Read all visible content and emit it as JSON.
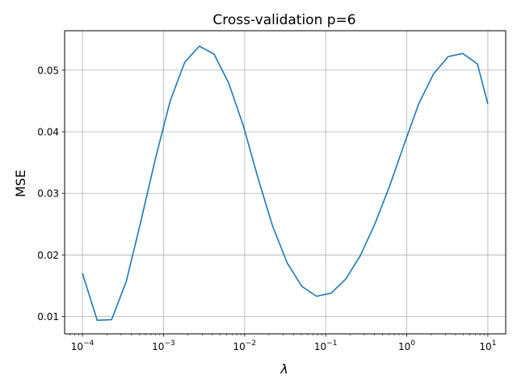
{
  "chart_data": {
    "type": "line",
    "title": "Cross-validation p=6",
    "xlabel": "λ",
    "ylabel": "MSE",
    "xscale": "log",
    "xlim": [
      6e-05,
      1.6e-05
    ],
    "xlim_exp": [
      -4.22,
      1.22
    ],
    "ylim": [
      0.0072,
      0.0564
    ],
    "grid": true,
    "line_color": "#1f77b4",
    "x_ticks": [
      {
        "exp": -4,
        "base": "10",
        "sup": "−4"
      },
      {
        "exp": -3,
        "base": "10",
        "sup": "−3"
      },
      {
        "exp": -2,
        "base": "10",
        "sup": "−2"
      },
      {
        "exp": -1,
        "base": "10",
        "sup": "−1"
      },
      {
        "exp": 0,
        "base": "10",
        "sup": "0"
      },
      {
        "exp": 1,
        "base": "10",
        "sup": "1"
      }
    ],
    "y_ticks": [
      {
        "value": 0.01,
        "label": "0.01"
      },
      {
        "value": 0.02,
        "label": "0.02"
      },
      {
        "value": 0.03,
        "label": "0.03"
      },
      {
        "value": 0.04,
        "label": "0.04"
      },
      {
        "value": 0.05,
        "label": "0.05"
      }
    ],
    "series": [
      {
        "x": [
          0.0001,
          0.000152,
          0.000229,
          0.000347,
          0.000526,
          0.000796,
          0.001207,
          0.001828,
          0.002771,
          0.004198,
          0.006361,
          0.009639,
          0.01461,
          0.02212,
          0.03352,
          0.0508,
          0.07697,
          0.1166,
          0.1767,
          0.2678,
          0.4057,
          0.6148,
          0.9316,
          1.4116,
          2.139,
          3.2413,
          4.9115,
          7.4425,
          11.278,
          10.0
        ],
        "y": [
          0.017,
          0.0094,
          0.0095,
          0.0157,
          0.0255,
          0.0357,
          0.045,
          0.0513,
          0.0539,
          0.0526,
          0.0479,
          0.041,
          0.0325,
          0.0247,
          0.0187,
          0.0149,
          0.0133,
          0.0138,
          0.0161,
          0.0199,
          0.0251,
          0.0312,
          0.038,
          0.0446,
          0.0494,
          0.0522,
          0.0527,
          0.051,
          0.0482,
          0.0445
        ]
      }
    ]
  }
}
